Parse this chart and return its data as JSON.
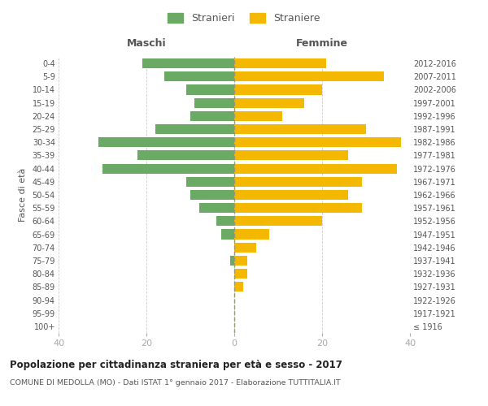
{
  "age_groups": [
    "100+",
    "95-99",
    "90-94",
    "85-89",
    "80-84",
    "75-79",
    "70-74",
    "65-69",
    "60-64",
    "55-59",
    "50-54",
    "45-49",
    "40-44",
    "35-39",
    "30-34",
    "25-29",
    "20-24",
    "15-19",
    "10-14",
    "5-9",
    "0-4"
  ],
  "birth_years": [
    "≤ 1916",
    "1917-1921",
    "1922-1926",
    "1927-1931",
    "1932-1936",
    "1937-1941",
    "1942-1946",
    "1947-1951",
    "1952-1956",
    "1957-1961",
    "1962-1966",
    "1967-1971",
    "1972-1976",
    "1977-1981",
    "1982-1986",
    "1987-1991",
    "1992-1996",
    "1997-2001",
    "2002-2006",
    "2007-2011",
    "2012-2016"
  ],
  "maschi": [
    0,
    0,
    0,
    0,
    0,
    1,
    0,
    3,
    4,
    8,
    10,
    11,
    30,
    22,
    31,
    18,
    10,
    9,
    11,
    16,
    21
  ],
  "femmine": [
    0,
    0,
    0,
    2,
    3,
    3,
    5,
    8,
    20,
    29,
    26,
    29,
    37,
    26,
    38,
    30,
    11,
    16,
    20,
    34,
    21
  ],
  "color_maschi": "#6aaa64",
  "color_femmine": "#f5b800",
  "title": "Popolazione per cittadinanza straniera per età e sesso - 2017",
  "subtitle": "COMUNE DI MEDOLLA (MO) - Dati ISTAT 1° gennaio 2017 - Elaborazione TUTTITALIA.IT",
  "ylabel_left": "Fasce di età",
  "xlabel_maschi": "Maschi",
  "xlabel_femmine": "Femmine",
  "legend_maschi": "Stranieri",
  "legend_femmine": "Straniere",
  "xlim": 40,
  "background_color": "#ffffff",
  "grid_color": "#cccccc",
  "axis_color": "#aaaaaa",
  "text_color": "#555555"
}
